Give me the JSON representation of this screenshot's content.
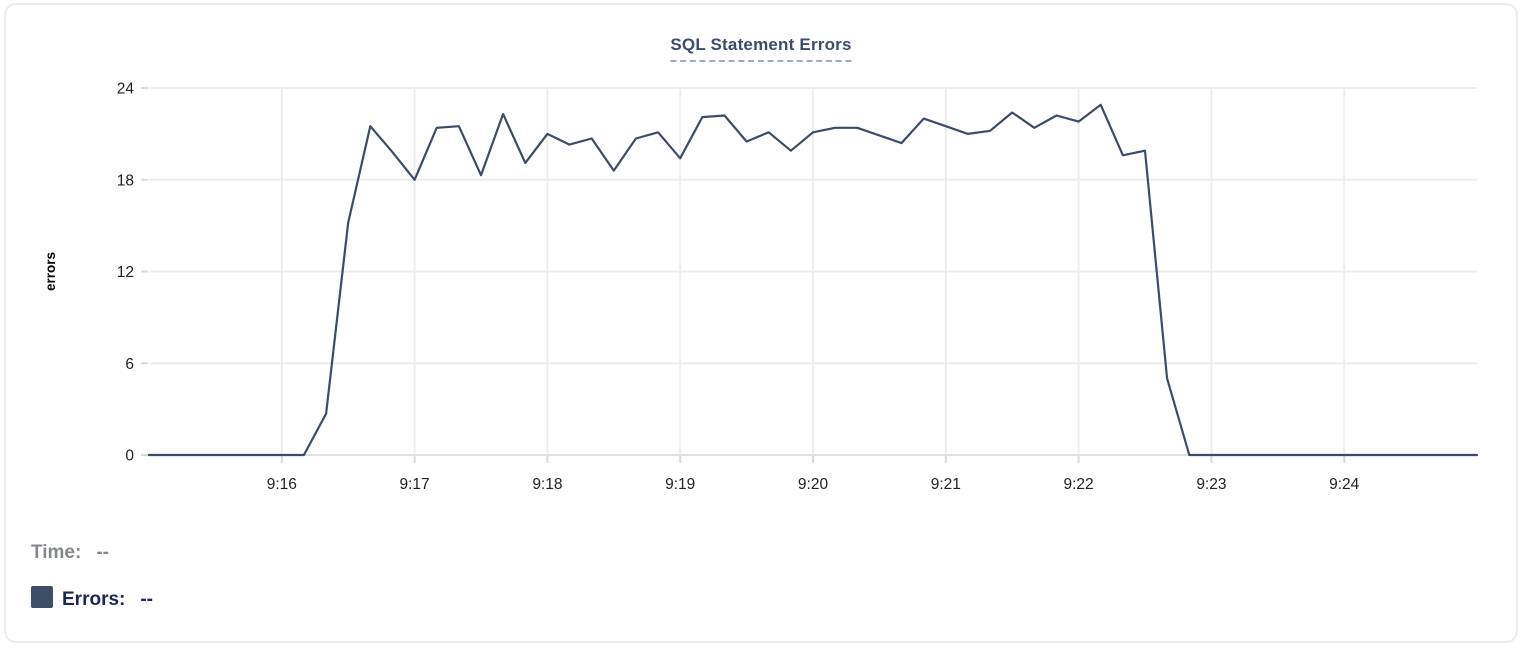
{
  "chart": {
    "title": "SQL Statement Errors",
    "legend": {
      "time_label": "Time:",
      "time_value": "--",
      "errors_label": "Errors:",
      "errors_value": "--"
    },
    "colors": {
      "line": "#3c4c68",
      "legend_swatch": "#3d4e67",
      "title_text": "#3c4c6d",
      "dashed_underline": "#9fabc6",
      "gridline": "#ededed",
      "baseline": "#e0e0e0",
      "tick_mark": "#d8d8d8",
      "tick_label_text": "#222222",
      "axis_label_text": "#000000",
      "time_legend_text": "#85888e",
      "errors_legend_text": "#1c2652"
    }
  },
  "chart_data": {
    "type": "line",
    "title": "SQL Statement Errors",
    "xlabel": "",
    "ylabel": "errors",
    "ylim": [
      0,
      24
    ],
    "yticks": [
      0,
      6,
      12,
      18,
      24
    ],
    "xtick_labels": [
      "9:16",
      "9:17",
      "9:18",
      "9:19",
      "9:20",
      "9:21",
      "9:22",
      "9:23",
      "9:24"
    ],
    "x_range": [
      "9:15:00",
      "9:25:00"
    ],
    "grid": true,
    "legend_position": "bottom-left",
    "x_times": [
      "9:15:00",
      "9:15:10",
      "9:15:20",
      "9:15:30",
      "9:15:40",
      "9:15:50",
      "9:16:00",
      "9:16:10",
      "9:16:20",
      "9:16:30",
      "9:16:40",
      "9:16:50",
      "9:17:00",
      "9:17:10",
      "9:17:20",
      "9:17:30",
      "9:17:40",
      "9:17:50",
      "9:18:00",
      "9:18:10",
      "9:18:20",
      "9:18:30",
      "9:18:40",
      "9:18:50",
      "9:19:00",
      "9:19:10",
      "9:19:20",
      "9:19:30",
      "9:19:40",
      "9:19:50",
      "9:20:00",
      "9:20:10",
      "9:20:20",
      "9:20:30",
      "9:20:40",
      "9:20:50",
      "9:21:00",
      "9:21:10",
      "9:21:20",
      "9:21:30",
      "9:21:40",
      "9:21:50",
      "9:22:00",
      "9:22:10",
      "9:22:20",
      "9:22:30",
      "9:22:40",
      "9:22:50",
      "9:23:00",
      "9:23:10",
      "9:23:20",
      "9:23:30",
      "9:23:40",
      "9:23:50",
      "9:24:00",
      "9:24:10",
      "9:24:20",
      "9:24:30",
      "9:24:40",
      "9:24:50",
      "9:25:00"
    ],
    "series": [
      {
        "name": "Errors",
        "color": "#3c4c68",
        "values": [
          0,
          0,
          0,
          0,
          0,
          0,
          0,
          0,
          2.7,
          15.2,
          21.5,
          19.8,
          18,
          21.4,
          21.5,
          18.3,
          22.3,
          19.1,
          21,
          20.3,
          20.7,
          18.6,
          20.7,
          21.1,
          19.4,
          22.1,
          22.2,
          20.5,
          21.1,
          19.9,
          21.1,
          21.4,
          21.4,
          20.9,
          20.4,
          22,
          21.5,
          21,
          21.2,
          22.4,
          21.4,
          22.2,
          21.8,
          22.9,
          19.6,
          19.9,
          5,
          0,
          0,
          0,
          0,
          0,
          0,
          0,
          0,
          0,
          0,
          0,
          0,
          0,
          0
        ]
      }
    ]
  }
}
